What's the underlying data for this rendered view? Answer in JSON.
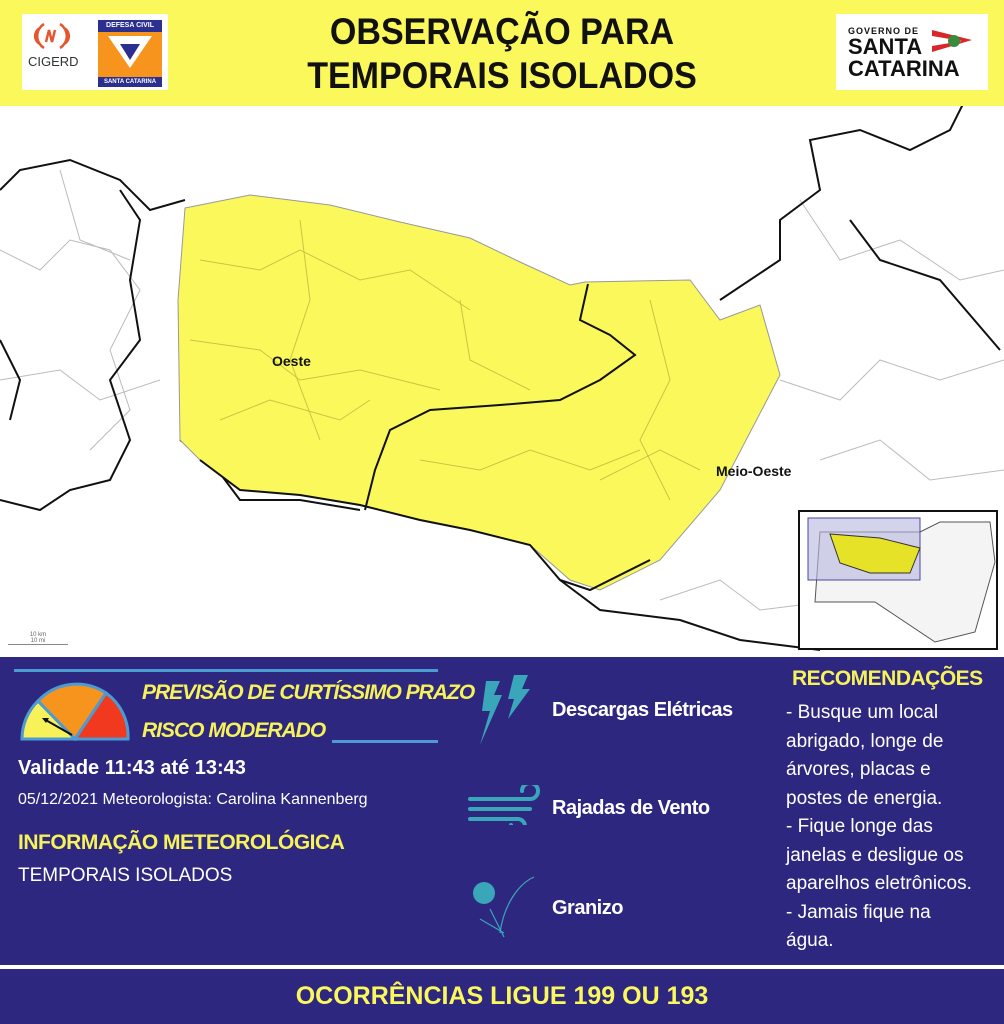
{
  "header": {
    "title_line1": "OBSERVAÇÃO PARA",
    "title_line2": "TEMPORAIS ISOLADOS",
    "logos": {
      "cigerd": "CIGERD",
      "defesa_civil_top": "DEFESA CIVIL",
      "defesa_civil_bottom": "SANTA CATARINA",
      "gov_top": "GOVERNO DE",
      "gov_line1": "SANTA",
      "gov_line2": "CATARINA"
    }
  },
  "map": {
    "regions": [
      {
        "label": "Oeste"
      },
      {
        "label": "Meio-Oeste"
      }
    ],
    "alert_color": "#fbf85c",
    "scale": {
      "km": "10 km",
      "mi": "10 mi"
    }
  },
  "panel": {
    "forecast_type": "PREVISÃO DE CURTÍSSIMO PRAZO",
    "risk": "RISCO MODERADO",
    "risk_gauge": {
      "levels": [
        "#f8f25a",
        "#f7941d",
        "#f0391e"
      ],
      "current_level": 1
    },
    "validity": "Validade 11:43 até 13:43",
    "date_meteorologist": "05/12/2021 Meteorologista: Carolina Kannenberg",
    "info_heading": "INFORMAÇÃO METEOROLÓGICA",
    "info_text": "TEMPORAIS ISOLADOS",
    "hazards": [
      {
        "icon": "lightning-icon",
        "label": "Descargas Elétricas"
      },
      {
        "icon": "wind-icon",
        "label": "Rajadas de Vento"
      },
      {
        "icon": "hail-icon",
        "label": "Granizo"
      }
    ],
    "recommendations_heading": "RECOMENDAÇÕES",
    "recommendations": [
      "- Busque um local",
      "abrigado, longe de",
      "árvores, placas e",
      "postes de energia.",
      "- Fique longe das",
      "janelas e desligue os",
      "aparelhos eletrônicos.",
      "- Jamais fique na",
      "água."
    ]
  },
  "footer": {
    "text": "OCORRÊNCIAS LIGUE 199 OU 193"
  }
}
